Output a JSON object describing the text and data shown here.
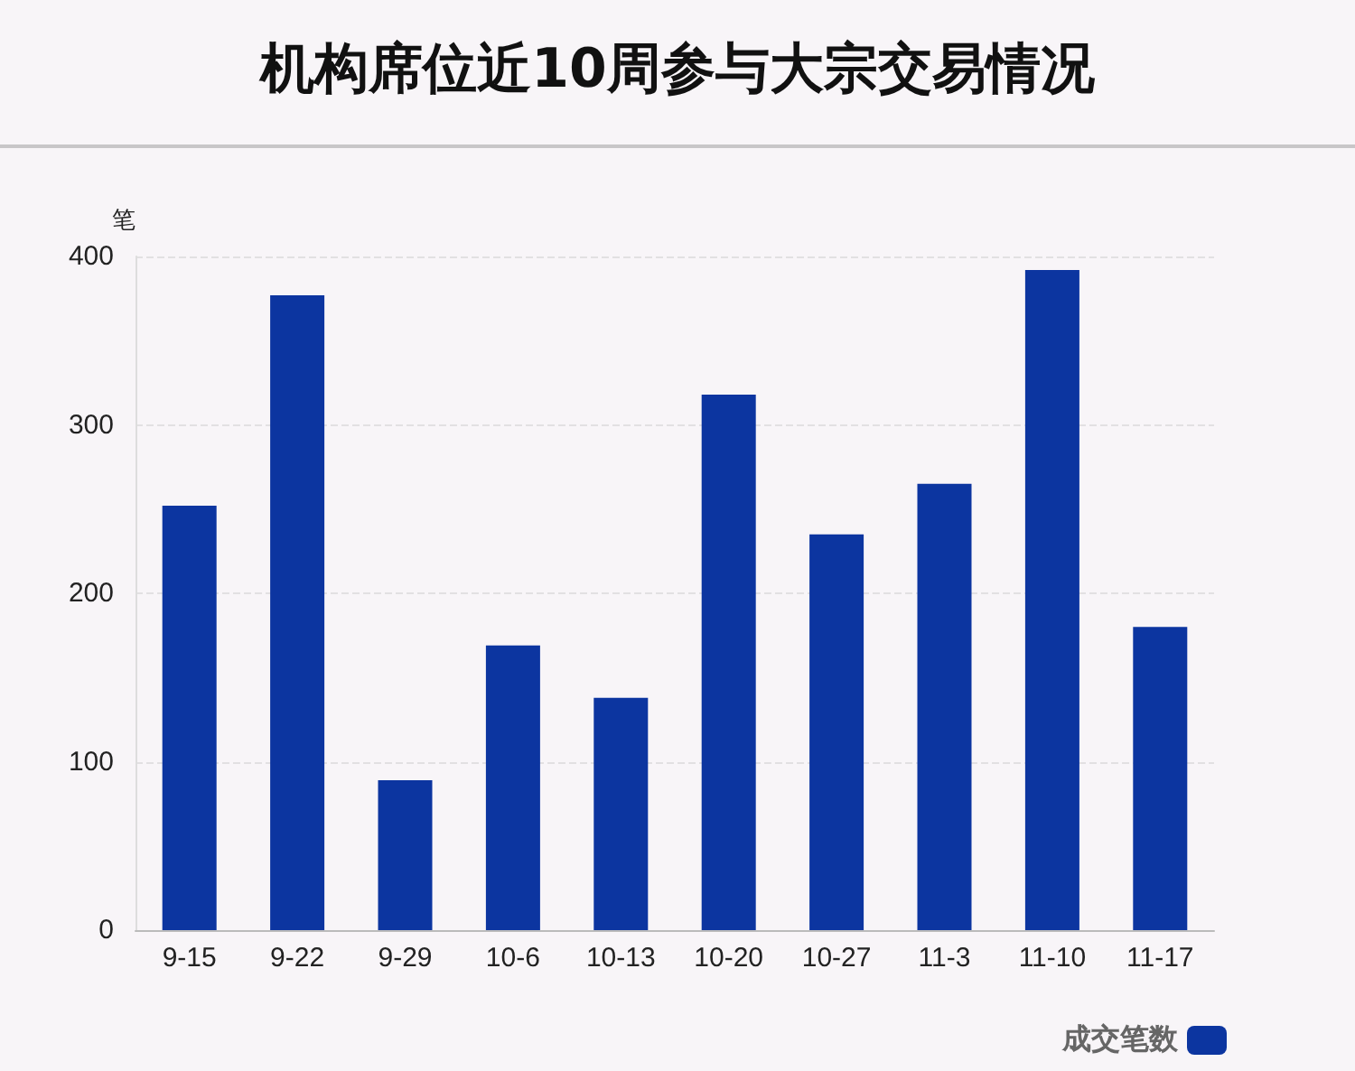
{
  "chart_data": {
    "type": "bar",
    "title": "机构席位近10周参与大宗交易情况",
    "ylabel": "笔",
    "categories": [
      "9-15",
      "9-22",
      "9-29",
      "10-6",
      "10-13",
      "10-20",
      "10-27",
      "11-3",
      "11-10",
      "11-17"
    ],
    "series": [
      {
        "name": "成交笔数",
        "color": "#0c35a0",
        "values": [
          252,
          377,
          89,
          169,
          138,
          318,
          235,
          265,
          392,
          180
        ]
      }
    ],
    "ylim": [
      0,
      400
    ],
    "yticks": [
      0,
      100,
      200,
      300,
      400
    ],
    "grid": "y",
    "legend": "bottom right"
  }
}
